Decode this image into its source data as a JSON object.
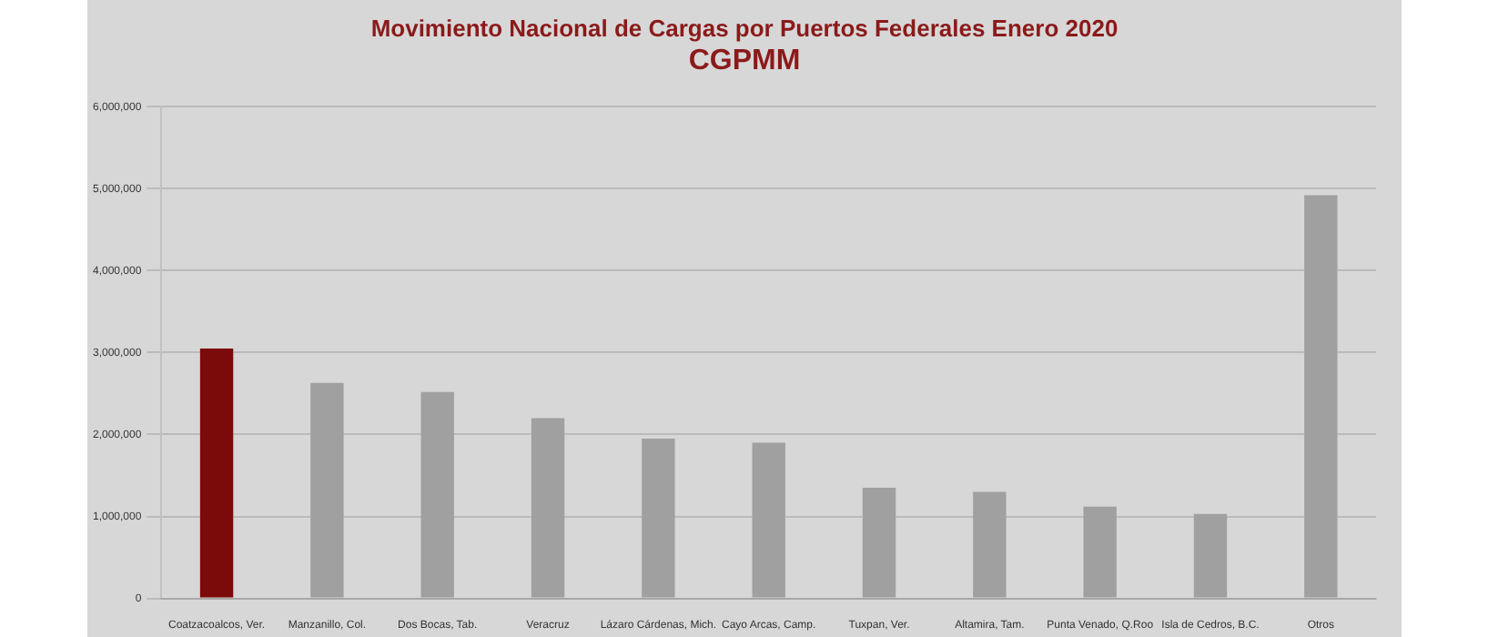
{
  "chart_data": {
    "type": "bar",
    "title": "Movimiento Nacional de Cargas por Puertos  Federales  Enero 2020",
    "subtitle": "CGPMM",
    "categories": [
      "Coatzacoalcos, Ver.",
      "Manzanillo, Col.",
      "Dos Bocas, Tab.",
      "Veracruz",
      "Lázaro Cárdenas, Mich.",
      "Cayo Arcas, Camp.",
      "Tuxpan, Ver.",
      "Altamira, Tam.",
      "Punta Venado, Q.Roo",
      "Isla de Cedros, B.C.",
      "Otros"
    ],
    "values": [
      3050000,
      2630000,
      2520000,
      2200000,
      1950000,
      1900000,
      1350000,
      1300000,
      1120000,
      1030000,
      4920000
    ],
    "colors": [
      "#7b0a0a",
      "#a0a0a0",
      "#a0a0a0",
      "#a0a0a0",
      "#a0a0a0",
      "#a0a0a0",
      "#a0a0a0",
      "#a0a0a0",
      "#a0a0a0",
      "#a0a0a0",
      "#a0a0a0"
    ],
    "ylim": [
      0,
      6000000
    ],
    "yticks": [
      0,
      {
        "value": 1000000,
        "label": "1,000,000"
      },
      {
        "value": 2000000,
        "label": "2,000,000"
      },
      {
        "value": 3000000,
        "label": "3,000,000"
      },
      {
        "value": 4000000,
        "label": "4,000,000"
      },
      {
        "value": 5000000,
        "label": "5,000,000"
      },
      {
        "value": 6000000,
        "label": "6,000,000"
      }
    ],
    "grid": "y",
    "legend": false
  }
}
